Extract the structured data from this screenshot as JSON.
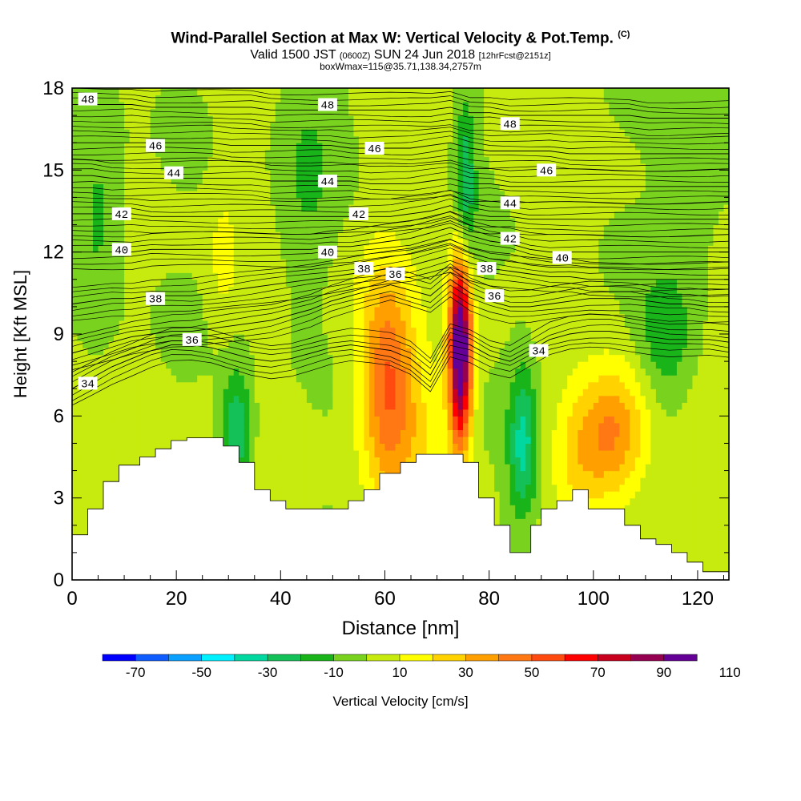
{
  "chart_data": {
    "type": "heatmap",
    "title": {
      "main": "Wind-Parallel Section at Max W: Vertical Velocity & Pot.Temp.",
      "main_tag": "(C)",
      "line2_prefix": "Valid 1500 JST",
      "line2_utc": "(0600Z)",
      "line2_date": "SUN 24 Jun 2018",
      "line2_fcst": "[12hrFcst@2151z]",
      "line3": "boxWmax=115@35.71,138.34,2757m"
    },
    "xlabel": "Distance [nm]",
    "ylabel": "Height [Kft MSL]",
    "xlim": [
      0,
      126
    ],
    "ylim": [
      0,
      18
    ],
    "xticks": [
      0,
      20,
      40,
      60,
      80,
      100,
      120
    ],
    "yticks": [
      0,
      3,
      6,
      9,
      12,
      15,
      18
    ],
    "colorbar": {
      "label": "Vertical Velocity [cm/s]",
      "min": -80,
      "max": 110,
      "step": 10,
      "ticks": [
        -70,
        -50,
        -30,
        -10,
        10,
        30,
        50,
        70,
        90,
        110
      ],
      "colors": [
        "#0000ff",
        "#0f5cff",
        "#0aa0ff",
        "#00f0ff",
        "#00d8a0",
        "#14c058",
        "#19b419",
        "#78d21e",
        "#c8eb0f",
        "#ffff00",
        "#ffd200",
        "#ffa000",
        "#ff7814",
        "#ff4b0f",
        "#ff0000",
        "#c8001e",
        "#960050",
        "#640096"
      ]
    },
    "terrain_profile": {
      "x": [
        0,
        3,
        3,
        6,
        6,
        9,
        9,
        13,
        13,
        16,
        16,
        19,
        19,
        22,
        22,
        29,
        29,
        32,
        32,
        35,
        35,
        38,
        38,
        41,
        41,
        44,
        44,
        53,
        53,
        56,
        56,
        59,
        59,
        63,
        63,
        66,
        66,
        75,
        75,
        78,
        78,
        81,
        81,
        84,
        84,
        87,
        87,
        88,
        88,
        90,
        90,
        93,
        93,
        96,
        96,
        99,
        99,
        106,
        106,
        109,
        109,
        112,
        112,
        115,
        115,
        118,
        118,
        121,
        121,
        124,
        124,
        126
      ],
      "y": [
        1.65,
        1.65,
        2.6,
        2.6,
        3.6,
        3.6,
        4.2,
        4.2,
        4.5,
        4.5,
        4.8,
        4.8,
        5.1,
        5.1,
        5.2,
        5.2,
        4.9,
        4.9,
        4.3,
        4.3,
        3.3,
        3.3,
        2.9,
        2.9,
        2.6,
        2.6,
        2.6,
        2.6,
        2.9,
        2.9,
        3.3,
        3.3,
        3.9,
        3.9,
        4.3,
        4.3,
        4.6,
        4.6,
        4.3,
        4.3,
        3.0,
        3.0,
        2.0,
        2.0,
        1.0,
        1.0,
        1.0,
        1.0,
        2.0,
        2.0,
        2.6,
        2.6,
        2.9,
        2.9,
        3.3,
        3.3,
        2.6,
        2.6,
        2.0,
        2.0,
        1.5,
        1.5,
        1.3,
        1.3,
        1.0,
        1.0,
        0.65,
        0.65,
        0.3,
        0.3,
        0.3,
        0.3
      ]
    },
    "wind_features": [
      {
        "x": 74.5,
        "z": 8.5,
        "sx": 1.5,
        "sz": 2.4,
        "w": 115
      },
      {
        "x": 60.5,
        "z": 7.2,
        "sx": 3.6,
        "sz": 2.8,
        "w": 46
      },
      {
        "x": 67.5,
        "z": 5.2,
        "sx": 5.0,
        "sz": 2.2,
        "w": 14
      },
      {
        "x": 104,
        "z": 5.4,
        "sx": 4.5,
        "sz": 1.7,
        "w": 40
      },
      {
        "x": 97,
        "z": 4.6,
        "sx": 3.5,
        "sz": 1.6,
        "w": 18
      },
      {
        "x": 29,
        "z": 11.8,
        "sx": 1.8,
        "sz": 1.6,
        "w": 13
      },
      {
        "x": 86.5,
        "z": 5.0,
        "sx": 2.0,
        "sz": 2.0,
        "w": -36
      },
      {
        "x": 31.5,
        "z": 5.5,
        "sx": 2.0,
        "sz": 1.5,
        "w": -33
      },
      {
        "x": 75.5,
        "z": 14.2,
        "sx": 1.4,
        "sz": 2.4,
        "w": -30
      },
      {
        "x": 114,
        "z": 9.0,
        "sx": 3.6,
        "sz": 1.6,
        "w": -22
      },
      {
        "x": 5,
        "z": 13.5,
        "sx": 3.0,
        "sz": 3.0,
        "w": -15
      },
      {
        "x": 45,
        "z": 15.0,
        "sx": 4.0,
        "sz": 3.0,
        "w": -12
      },
      {
        "x": 120,
        "z": 16.0,
        "sx": 5.0,
        "sz": 2.5,
        "w": -10
      },
      {
        "x": 55,
        "z": 10.5,
        "sx": 5.0,
        "sz": 2.0,
        "w": 5
      }
    ],
    "isentropes": [
      {
        "theta": 34,
        "heights": [
          7.0,
          7.4,
          7.8,
          8.1,
          8.4,
          8.6,
          8.6,
          8.5,
          8.3,
          8.1,
          8.0,
          8.1,
          8.3,
          8.5,
          8.6,
          8.5,
          8.4,
          8.1,
          7.5,
          8.8,
          8.6,
          8.2,
          8.0,
          8.4,
          8.8,
          9.0,
          9.1,
          9.1,
          9.0,
          8.9,
          8.8,
          8.8,
          8.8,
          8.7
        ]
      },
      {
        "theta": 36,
        "heights": [
          8.3,
          8.5,
          8.7,
          8.9,
          9.0,
          9.1,
          9.1,
          9.2,
          9.3,
          9.4,
          9.5,
          9.7,
          9.9,
          10.2,
          10.4,
          10.6,
          10.8,
          10.6,
          10.4,
          11.0,
          10.5,
          10.2,
          10.0,
          10.0,
          10.1,
          10.2,
          10.3,
          10.3,
          10.3,
          10.2,
          10.1,
          10.1,
          10.0,
          10.0
        ]
      },
      {
        "theta": 38,
        "heights": [
          10.1,
          10.2,
          10.3,
          10.3,
          10.4,
          10.4,
          10.4,
          10.5,
          10.6,
          10.7,
          10.8,
          10.9,
          11.0,
          11.1,
          11.2,
          11.3,
          11.4,
          11.5,
          11.7,
          11.9,
          11.6,
          11.4,
          11.3,
          11.2,
          11.1,
          11.1,
          11.0,
          11.0,
          11.0,
          11.0,
          11.0,
          11.0,
          11.0,
          11.0
        ]
      },
      {
        "theta": 40,
        "heights": [
          12.0,
          12.0,
          12.0,
          12.0,
          12.1,
          12.1,
          12.1,
          12.1,
          12.1,
          12.1,
          12.1,
          12.1,
          12.1,
          12.2,
          12.2,
          12.3,
          12.4,
          12.5,
          12.7,
          12.9,
          12.6,
          12.4,
          12.3,
          12.1,
          12.0,
          12.0,
          12.0,
          12.0,
          12.0,
          12.0,
          12.0,
          12.0,
          12.0,
          12.0
        ]
      },
      {
        "theta": 42,
        "heights": [
          13.4,
          13.4,
          13.4,
          13.4,
          13.3,
          13.3,
          13.3,
          13.3,
          13.3,
          13.3,
          13.3,
          13.3,
          13.3,
          13.3,
          13.3,
          13.3,
          13.3,
          13.4,
          13.5,
          13.7,
          13.4,
          13.3,
          13.3,
          13.2,
          13.2,
          13.2,
          13.2,
          13.2,
          13.2,
          13.2,
          13.2,
          13.2,
          13.2,
          13.2
        ]
      },
      {
        "theta": 44,
        "heights": [
          14.8,
          14.8,
          14.7,
          14.7,
          14.7,
          14.7,
          14.7,
          14.7,
          14.7,
          14.7,
          14.6,
          14.6,
          14.6,
          14.6,
          14.6,
          14.5,
          14.5,
          14.5,
          14.6,
          14.7,
          14.5,
          14.5,
          14.4,
          14.4,
          14.4,
          14.4,
          14.4,
          14.4,
          14.4,
          14.4,
          14.4,
          14.4,
          14.4,
          14.4
        ]
      },
      {
        "theta": 46,
        "heights": [
          16.0,
          16.0,
          16.0,
          16.0,
          16.0,
          16.0,
          16.0,
          16.0,
          15.9,
          15.9,
          15.9,
          15.9,
          15.9,
          15.9,
          15.8,
          15.8,
          15.8,
          15.8,
          15.9,
          16.0,
          15.8,
          15.7,
          15.7,
          15.7,
          15.7,
          15.6,
          15.6,
          15.6,
          15.6,
          15.6,
          15.6,
          15.6,
          15.6,
          15.6
        ]
      },
      {
        "theta": 48,
        "heights": [
          17.4,
          17.4,
          17.4,
          17.4,
          17.3,
          17.3,
          17.3,
          17.3,
          17.3,
          17.3,
          17.2,
          17.2,
          17.2,
          17.2,
          17.2,
          17.2,
          17.2,
          17.2,
          17.2,
          17.3,
          17.1,
          17.1,
          17.0,
          17.0,
          17.0,
          17.0,
          17.0,
          17.0,
          17.0,
          16.9,
          16.9,
          16.9,
          16.9,
          16.9
        ]
      }
    ],
    "isentrope_labels": [
      {
        "theta": "48",
        "x": 3.0,
        "z": 17.6
      },
      {
        "theta": "46",
        "x": 16.0,
        "z": 15.9
      },
      {
        "theta": "44",
        "x": 19.5,
        "z": 14.9
      },
      {
        "theta": "42",
        "x": 9.5,
        "z": 13.4
      },
      {
        "theta": "40",
        "x": 9.5,
        "z": 12.1
      },
      {
        "theta": "38",
        "x": 16.0,
        "z": 10.3
      },
      {
        "theta": "36",
        "x": 23.0,
        "z": 8.8
      },
      {
        "theta": "34",
        "x": 3.0,
        "z": 7.2
      },
      {
        "theta": "48",
        "x": 49.0,
        "z": 17.4
      },
      {
        "theta": "46",
        "x": 58.0,
        "z": 15.8
      },
      {
        "theta": "44",
        "x": 49.0,
        "z": 14.6
      },
      {
        "theta": "42",
        "x": 55.0,
        "z": 13.4
      },
      {
        "theta": "40",
        "x": 49.0,
        "z": 12.0
      },
      {
        "theta": "38",
        "x": 56.0,
        "z": 11.4
      },
      {
        "theta": "36",
        "x": 62.0,
        "z": 11.2
      },
      {
        "theta": "48",
        "x": 84.0,
        "z": 16.7
      },
      {
        "theta": "46",
        "x": 91.0,
        "z": 15.0
      },
      {
        "theta": "44",
        "x": 84.0,
        "z": 13.8
      },
      {
        "theta": "42",
        "x": 84.0,
        "z": 12.5
      },
      {
        "theta": "40",
        "x": 94.0,
        "z": 11.8
      },
      {
        "theta": "38",
        "x": 79.5,
        "z": 11.4
      },
      {
        "theta": "36",
        "x": 81.0,
        "z": 10.4
      },
      {
        "theta": "34",
        "x": 89.5,
        "z": 8.4
      }
    ]
  }
}
